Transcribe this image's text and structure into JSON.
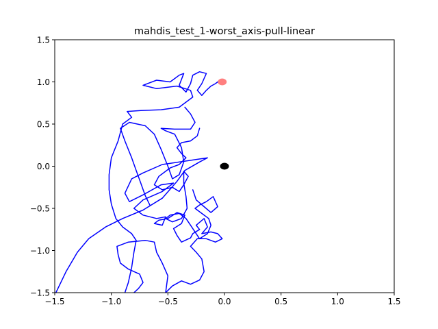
{
  "chart_data": {
    "type": "line",
    "title": "mahdis_test_1-worst_axis-pull-linear",
    "xlabel": "",
    "ylabel": "",
    "xlim": [
      -1.5,
      1.5
    ],
    "ylim": [
      -1.5,
      1.5
    ],
    "grid": false,
    "x_ticks": [
      -1.5,
      -1.0,
      -0.5,
      0.0,
      0.5,
      1.0,
      1.5
    ],
    "y_ticks": [
      -1.5,
      -1.0,
      -0.5,
      0.0,
      0.5,
      1.0,
      1.5
    ],
    "x_tick_labels": [
      "−1.5",
      "−1.0",
      "−0.5",
      "0.0",
      "0.5",
      "1.0",
      "1.5"
    ],
    "y_tick_labels": [
      "−1.5",
      "−1.0",
      "−0.5",
      "0.0",
      "0.5",
      "1.0",
      "1.5"
    ],
    "colors": {
      "trajectory": "#0000ff",
      "goal": "#ff0000",
      "origin": "#000000"
    },
    "series": [
      {
        "kind": "trajectory",
        "points": [
          [
            -1.49,
            -1.5
          ],
          [
            -1.4,
            -1.25
          ],
          [
            -1.3,
            -1.02
          ],
          [
            -1.2,
            -0.86
          ],
          [
            -1.05,
            -0.72
          ],
          [
            -0.9,
            -0.62
          ],
          [
            -0.72,
            -0.52
          ],
          [
            -0.55,
            -0.38
          ],
          [
            -0.42,
            -0.18
          ],
          [
            -0.35,
            -0.05
          ],
          [
            -0.22,
            0.05
          ],
          [
            -0.15,
            0.1
          ],
          [
            -0.35,
            0.06
          ],
          [
            -0.55,
            0.02
          ],
          [
            -0.72,
            -0.08
          ],
          [
            -0.82,
            -0.15
          ],
          [
            -0.88,
            -0.32
          ],
          [
            -0.84,
            -0.42
          ],
          [
            -0.72,
            -0.34
          ],
          [
            -0.56,
            -0.22
          ],
          [
            -0.45,
            -0.2
          ],
          [
            -0.55,
            -0.3
          ],
          [
            -0.72,
            -0.4
          ],
          [
            -0.8,
            -0.5
          ],
          [
            -0.72,
            -0.58
          ],
          [
            -0.6,
            -0.62
          ],
          [
            -0.52,
            -0.6
          ],
          [
            -0.55,
            -0.7
          ],
          [
            -0.62,
            -0.68
          ],
          [
            -0.58,
            -0.64
          ],
          [
            -0.5,
            -0.62
          ],
          [
            -0.42,
            -0.55
          ],
          [
            -0.35,
            -0.58
          ],
          [
            -0.38,
            -0.68
          ],
          [
            -0.45,
            -0.74
          ],
          [
            -0.42,
            -0.82
          ],
          [
            -0.38,
            -0.9
          ],
          [
            -0.3,
            -0.85
          ],
          [
            -0.28,
            -0.8
          ],
          [
            -0.22,
            -0.75
          ],
          [
            -0.25,
            -0.7
          ],
          [
            -0.18,
            -0.62
          ],
          [
            -0.15,
            -0.72
          ],
          [
            -0.2,
            -0.8
          ],
          [
            -0.12,
            -0.78
          ],
          [
            -0.06,
            -0.8
          ],
          [
            -0.02,
            -0.86
          ],
          [
            -0.08,
            -0.9
          ],
          [
            -0.16,
            -0.86
          ],
          [
            -0.24,
            -0.86
          ],
          [
            -0.3,
            -0.95
          ],
          [
            -0.25,
            -1.02
          ],
          [
            -0.2,
            -1.1
          ],
          [
            -0.18,
            -1.25
          ],
          [
            -0.22,
            -1.35
          ],
          [
            -0.3,
            -1.4
          ],
          [
            -0.38,
            -1.36
          ],
          [
            -0.46,
            -1.42
          ],
          [
            -0.52,
            -1.5
          ]
        ]
      },
      {
        "kind": "trajectory",
        "points": [
          [
            -0.52,
            -1.5
          ],
          [
            -0.5,
            -1.3
          ],
          [
            -0.55,
            -1.15
          ],
          [
            -0.6,
            -1.02
          ],
          [
            -0.62,
            -0.9
          ],
          [
            -0.7,
            -0.88
          ],
          [
            -0.85,
            -0.9
          ],
          [
            -0.95,
            -0.95
          ],
          [
            -0.94,
            -1.05
          ],
          [
            -0.92,
            -1.15
          ],
          [
            -0.85,
            -1.22
          ],
          [
            -0.75,
            -1.28
          ],
          [
            -0.72,
            -1.38
          ],
          [
            -0.76,
            -1.45
          ],
          [
            -0.8,
            -1.5
          ]
        ]
      },
      {
        "kind": "trajectory",
        "points": [
          [
            -0.88,
            -1.5
          ],
          [
            -0.85,
            -1.38
          ],
          [
            -0.82,
            -1.2
          ],
          [
            -0.8,
            -1.02
          ],
          [
            -0.78,
            -0.88
          ],
          [
            -0.82,
            -0.8
          ],
          [
            -0.9,
            -0.72
          ],
          [
            -0.96,
            -0.62
          ],
          [
            -1.0,
            -0.45
          ],
          [
            -1.02,
            -0.28
          ],
          [
            -1.02,
            -0.1
          ],
          [
            -1.0,
            0.1
          ],
          [
            -0.94,
            0.3
          ],
          [
            -0.9,
            0.5
          ],
          [
            -0.82,
            0.58
          ],
          [
            -0.86,
            0.65
          ],
          [
            -0.74,
            0.66
          ],
          [
            -0.56,
            0.67
          ],
          [
            -0.4,
            0.7
          ],
          [
            -0.28,
            0.82
          ],
          [
            -0.3,
            0.9
          ],
          [
            -0.42,
            0.95
          ],
          [
            -0.6,
            0.92
          ],
          [
            -0.72,
            0.96
          ],
          [
            -0.6,
            1.02
          ],
          [
            -0.48,
            1.0
          ],
          [
            -0.4,
            1.08
          ],
          [
            -0.36,
            1.1
          ],
          [
            -0.4,
            0.96
          ],
          [
            -0.34,
            0.88
          ],
          [
            -0.3,
            0.98
          ],
          [
            -0.28,
            1.08
          ],
          [
            -0.22,
            1.12
          ],
          [
            -0.16,
            1.1
          ],
          [
            -0.2,
            0.98
          ],
          [
            -0.24,
            0.9
          ],
          [
            -0.2,
            0.84
          ],
          [
            -0.16,
            0.9
          ],
          [
            -0.12,
            0.95
          ],
          [
            -0.08,
            0.98
          ],
          [
            -0.06,
            1.0
          ]
        ]
      },
      {
        "kind": "trajectory",
        "points": [
          [
            -0.66,
            -0.46
          ],
          [
            -0.7,
            -0.35
          ],
          [
            -0.74,
            -0.2
          ],
          [
            -0.78,
            -0.05
          ],
          [
            -0.82,
            0.1
          ],
          [
            -0.88,
            0.3
          ],
          [
            -0.92,
            0.45
          ],
          [
            -0.84,
            0.52
          ],
          [
            -0.7,
            0.48
          ],
          [
            -0.62,
            0.38
          ],
          [
            -0.56,
            0.2
          ],
          [
            -0.5,
            0.0
          ],
          [
            -0.46,
            -0.15
          ],
          [
            -0.4,
            -0.1
          ],
          [
            -0.36,
            0.05
          ],
          [
            -0.38,
            0.22
          ],
          [
            -0.44,
            0.38
          ],
          [
            -0.52,
            0.42
          ],
          [
            -0.56,
            0.45
          ],
          [
            -0.44,
            0.44
          ],
          [
            -0.3,
            0.44
          ],
          [
            -0.26,
            0.52
          ],
          [
            -0.3,
            0.62
          ],
          [
            -0.35,
            0.7
          ]
        ]
      },
      {
        "kind": "trajectory",
        "points": [
          [
            -0.22,
            0.45
          ],
          [
            -0.24,
            0.36
          ],
          [
            -0.3,
            0.3
          ],
          [
            -0.38,
            0.28
          ],
          [
            -0.42,
            0.22
          ],
          [
            -0.38,
            0.15
          ],
          [
            -0.34,
            0.1
          ],
          [
            -0.4,
            0.02
          ],
          [
            -0.48,
            -0.02
          ],
          [
            -0.58,
            -0.12
          ],
          [
            -0.62,
            -0.22
          ],
          [
            -0.55,
            -0.28
          ],
          [
            -0.46,
            -0.25
          ],
          [
            -0.4,
            -0.3
          ],
          [
            -0.36,
            -0.22
          ],
          [
            -0.32,
            -0.12
          ],
          [
            -0.36,
            -0.06
          ],
          [
            -0.36,
            -0.2
          ],
          [
            -0.34,
            -0.36
          ],
          [
            -0.33,
            -0.5
          ],
          [
            -0.38,
            -0.62
          ],
          [
            -0.46,
            -0.66
          ],
          [
            -0.52,
            -0.62
          ],
          [
            -0.48,
            -0.58
          ],
          [
            -0.4,
            -0.56
          ],
          [
            -0.34,
            -0.62
          ],
          [
            -0.3,
            -0.7
          ],
          [
            -0.26,
            -0.78
          ],
          [
            -0.22,
            -0.86
          ],
          [
            -0.15,
            -0.8
          ],
          [
            -0.12,
            -0.7
          ],
          [
            -0.14,
            -0.62
          ],
          [
            -0.2,
            -0.56
          ],
          [
            -0.26,
            -0.5
          ],
          [
            -0.22,
            -0.46
          ],
          [
            -0.16,
            -0.42
          ],
          [
            -0.1,
            -0.36
          ],
          [
            -0.06,
            -0.48
          ],
          [
            -0.12,
            -0.55
          ],
          [
            -0.18,
            -0.48
          ],
          [
            -0.25,
            -0.4
          ],
          [
            -0.28,
            -0.28
          ]
        ]
      }
    ],
    "markers": [
      {
        "name": "goal",
        "x": -0.02,
        "y": 1.0,
        "color": "#ff0000",
        "alpha": 0.5
      },
      {
        "name": "origin",
        "x": 0.0,
        "y": 0.0,
        "color": "#000000",
        "alpha": 1.0
      }
    ]
  }
}
